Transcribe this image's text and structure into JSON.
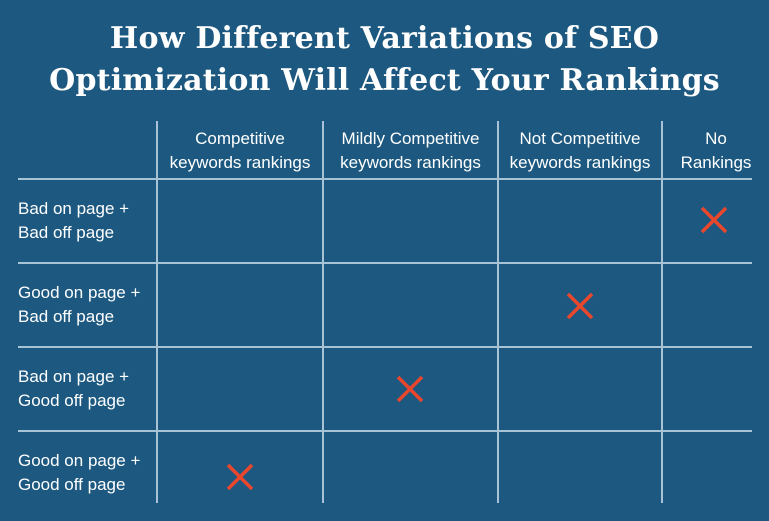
{
  "title": {
    "line1": "How Different Variations of SEO",
    "line2": "Optimization Will Affect Your Rankings"
  },
  "columns": [
    "Competitive\nkeywords rankings",
    "Mildly Competitive\nkeywords rankings",
    "Not Competitive\nkeywords rankings",
    "No\nRankings"
  ],
  "rows": [
    {
      "label": "Bad on page +\nBad off page",
      "mark_column": 3
    },
    {
      "label": "Good on page +\nBad off page",
      "mark_column": 2
    },
    {
      "label": "Bad on page +\nGood off page",
      "mark_column": 1
    },
    {
      "label": "Good on page +\nGood off page",
      "mark_column": 0
    }
  ],
  "mark_icon": "x-mark-icon",
  "colors": {
    "background": "#1c587f",
    "grid_line": "#a9c3d6",
    "mark": "#e8472e",
    "text": "#ffffff"
  }
}
